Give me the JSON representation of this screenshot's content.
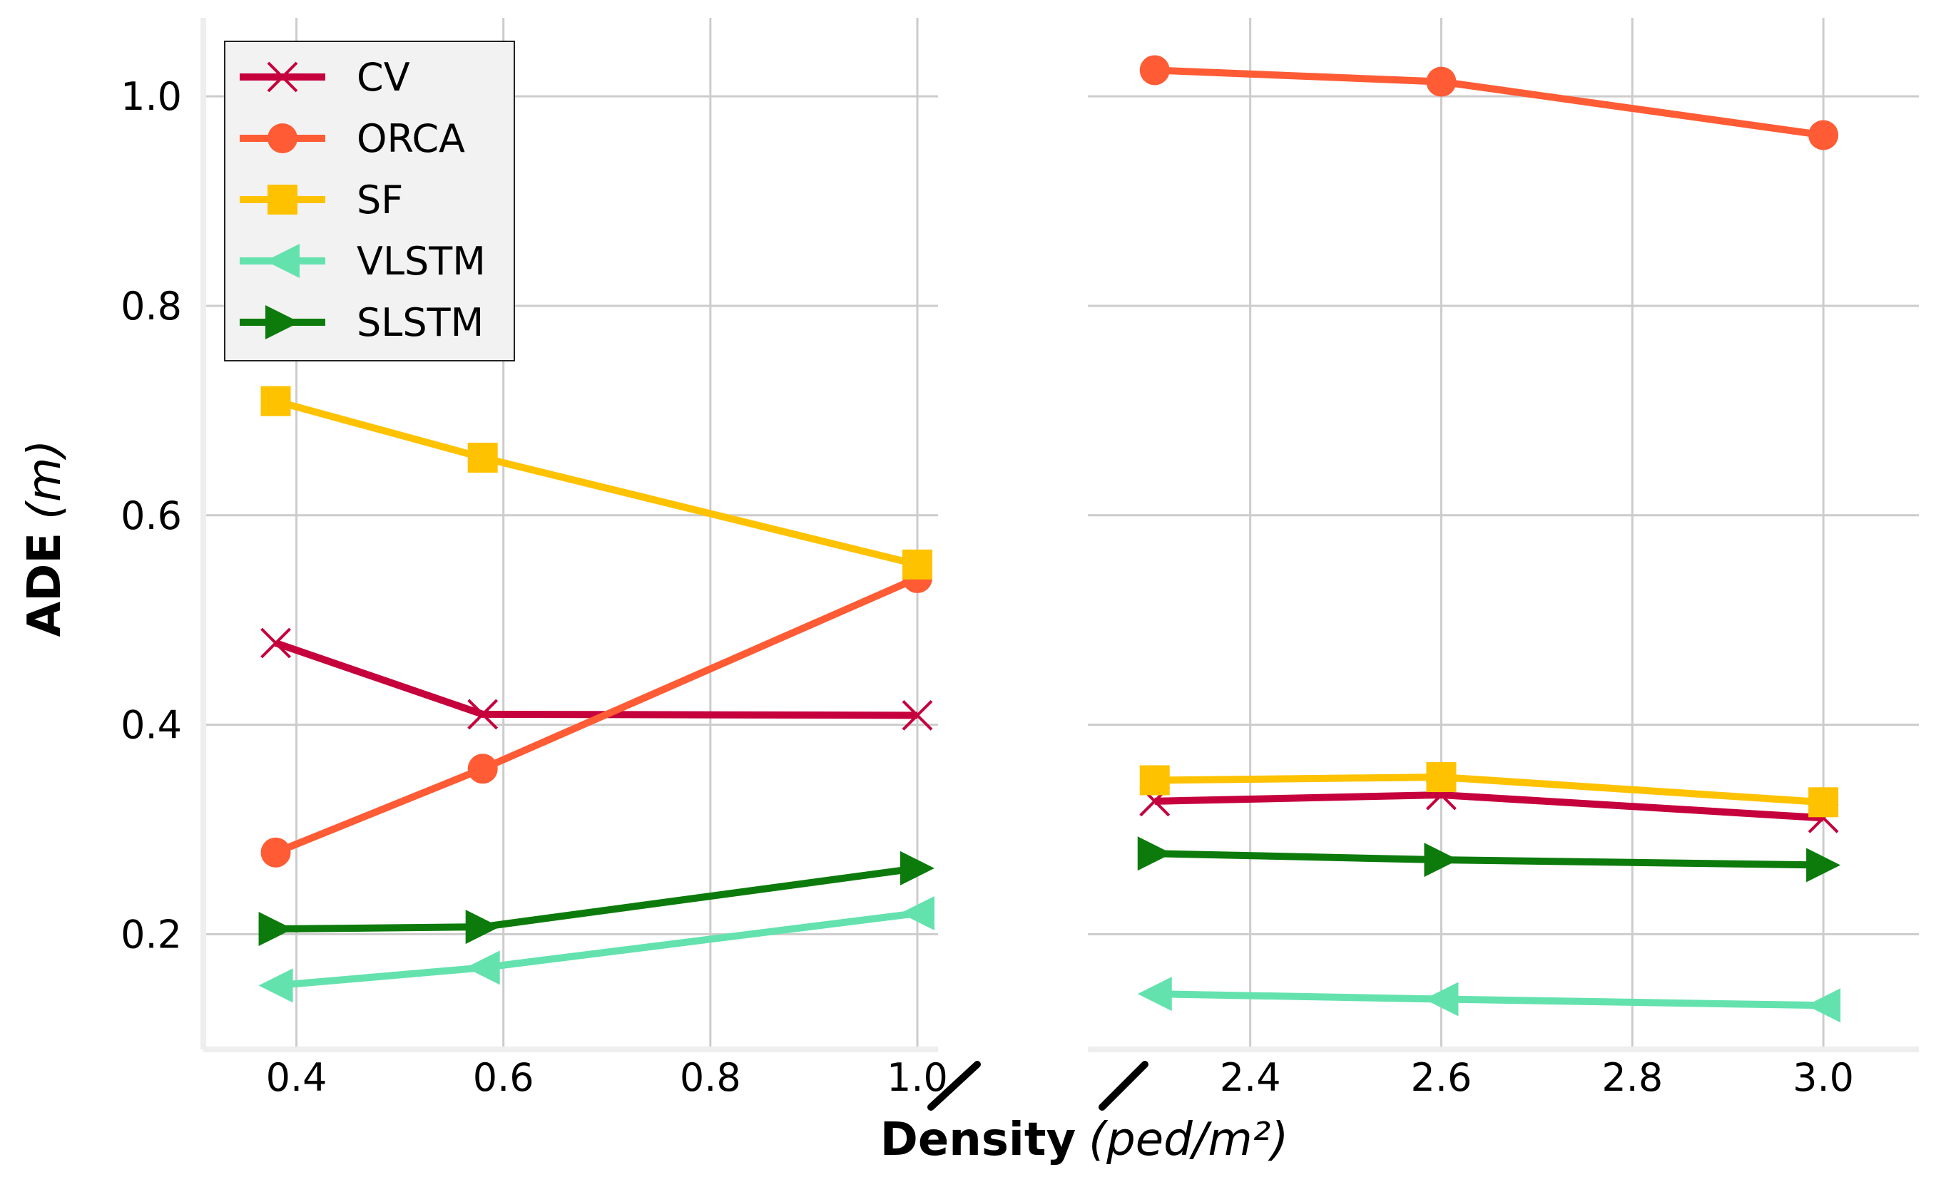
{
  "chart_data": {
    "type": "line",
    "broken_x_axis": true,
    "xlabel": {
      "bold": "Density",
      "unit": "(ped/m²)"
    },
    "ylabel": {
      "bold": "ADE",
      "unit": "(m)"
    },
    "ylim": [
      0.09,
      1.075
    ],
    "yticks": [
      "0.2",
      "0.4",
      "0.6",
      "0.8",
      "1.0"
    ],
    "yticks_values": [
      0.2,
      0.4,
      0.6,
      0.8,
      1.0
    ],
    "panels": [
      {
        "xlim": [
          0.31,
          1.02
        ],
        "xticks": [
          0.4,
          0.6,
          0.8,
          1.0
        ],
        "xtick_labels": [
          "0.4",
          "0.6",
          "0.8",
          "1.0"
        ]
      },
      {
        "xlim": [
          2.23,
          3.1
        ],
        "xticks": [
          2.4,
          2.6,
          2.8,
          3.0
        ],
        "xtick_labels": [
          "2.4",
          "2.6",
          "2.8",
          "3.0"
        ]
      }
    ],
    "x": [
      0.38,
      0.58,
      1.0,
      2.3,
      2.6,
      3.0
    ],
    "series": [
      {
        "name": "CV",
        "marker": "x",
        "color": "#c5003c",
        "values": [
          0.478,
          0.41,
          0.409,
          0.327,
          0.333,
          0.311
        ]
      },
      {
        "name": "ORCA",
        "marker": "circle",
        "color": "#ff5b35",
        "values": [
          0.278,
          0.358,
          0.54,
          1.025,
          1.014,
          0.963
        ]
      },
      {
        "name": "SF",
        "marker": "square",
        "color": "#ffc200",
        "values": [
          0.709,
          0.655,
          0.553,
          0.347,
          0.35,
          0.326
        ]
      },
      {
        "name": "VLSTM",
        "marker": "triangle-left",
        "color": "#64e2ae",
        "values": [
          0.151,
          0.168,
          0.22,
          0.143,
          0.138,
          0.132
        ]
      },
      {
        "name": "SLSTM",
        "marker": "triangle-right",
        "color": "#0c7b0c",
        "values": [
          0.205,
          0.207,
          0.263,
          0.277,
          0.271,
          0.266
        ]
      }
    ],
    "legend": {
      "placement": "top-left",
      "entries": [
        "CV",
        "ORCA",
        "SF",
        "VLSTM",
        "SLSTM"
      ]
    },
    "grid": true
  }
}
